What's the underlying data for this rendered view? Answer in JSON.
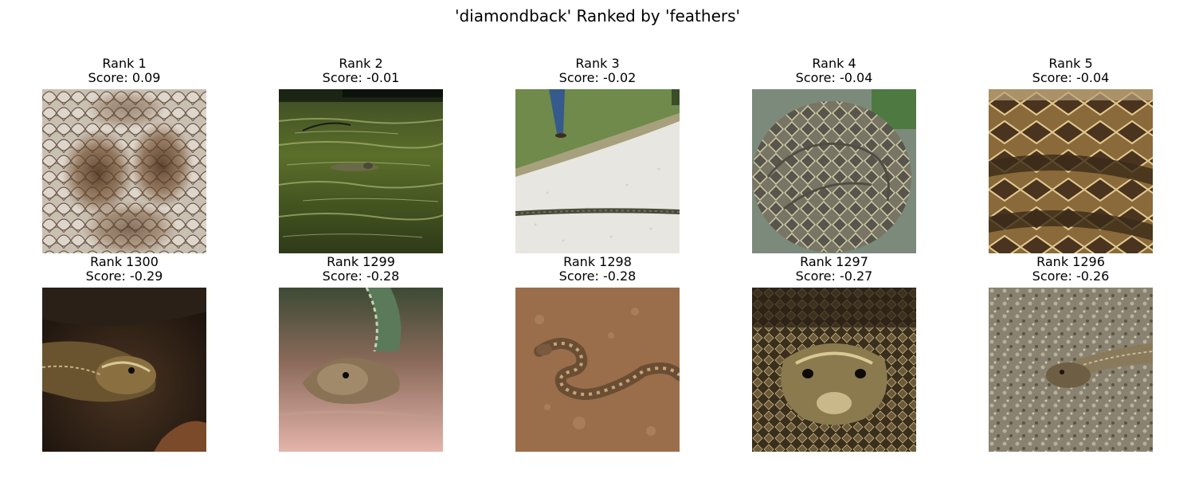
{
  "title": "'diamondback' Ranked by 'feathers'",
  "top_row": [
    {
      "rank": "Rank 1",
      "score": "Score: 0.09"
    },
    {
      "rank": "Rank 2",
      "score": "Score: -0.01"
    },
    {
      "rank": "Rank 3",
      "score": "Score: -0.02"
    },
    {
      "rank": "Rank 4",
      "score": "Score: -0.04"
    },
    {
      "rank": "Rank 5",
      "score": "Score: -0.04"
    }
  ],
  "bottom_row": [
    {
      "rank": "Rank 1300",
      "score": "Score: -0.29"
    },
    {
      "rank": "Rank 1299",
      "score": "Score: -0.28"
    },
    {
      "rank": "Rank 1298",
      "score": "Score: -0.28"
    },
    {
      "rank": "Rank 1297",
      "score": "Score: -0.27"
    },
    {
      "rank": "Rank 1296",
      "score": "Score: -0.26"
    }
  ]
}
